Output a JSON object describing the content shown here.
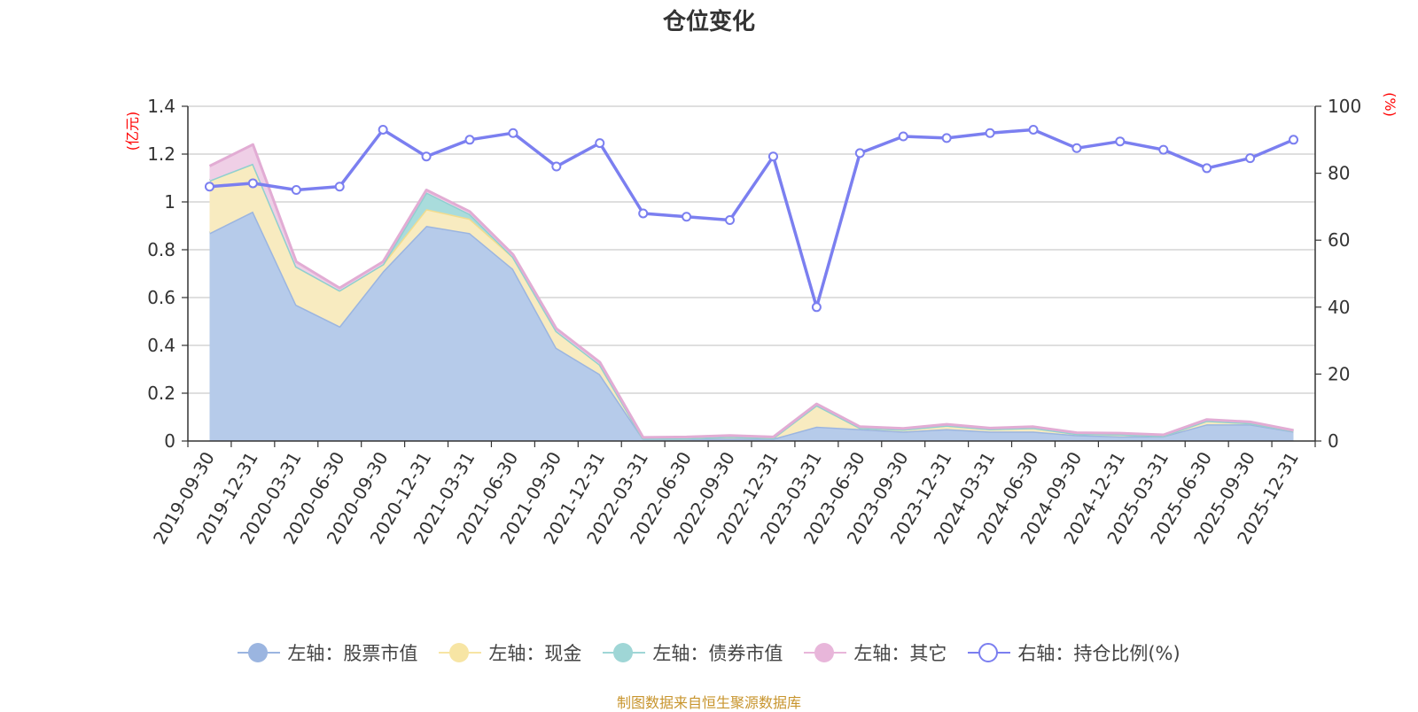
{
  "title": "仓位变化",
  "source_note": "制图数据来自恒生聚源数据库",
  "legend": [
    {
      "label": "左轴：股票市值",
      "color": "#9bb5e0",
      "hollow": false
    },
    {
      "label": "左轴：现金",
      "color": "#f7e5a4",
      "hollow": false
    },
    {
      "label": "左轴：债券市值",
      "color": "#9fd6d6",
      "hollow": false
    },
    {
      "label": "左轴：其它",
      "color": "#e8b6da",
      "hollow": false
    },
    {
      "label": "右轴：持仓比例(%)",
      "color": "#7b7ff0",
      "hollow": true
    }
  ],
  "chart_data": {
    "type": "area",
    "title": "仓位变化",
    "left_axis": {
      "unit": "(亿元)",
      "range": [
        0,
        1.4
      ],
      "ticks": [
        0,
        0.2,
        0.4,
        0.6,
        0.8,
        1,
        1.2,
        1.4
      ],
      "tick_labels": [
        "0",
        "0.2",
        "0.4",
        "0.6",
        "0.8",
        "1",
        "1.2",
        "1.4"
      ]
    },
    "right_axis": {
      "unit": "(%)",
      "range": [
        0,
        100
      ],
      "ticks": [
        0,
        20,
        40,
        60,
        80,
        100
      ],
      "tick_labels": [
        "0",
        "20",
        "40",
        "60",
        "80",
        "100"
      ]
    },
    "categories": [
      "2019-09-30",
      "2019-12-31",
      "2020-03-31",
      "2020-06-30",
      "2020-09-30",
      "2020-12-31",
      "2021-03-31",
      "2021-06-30",
      "2021-09-30",
      "2021-12-31",
      "2022-03-31",
      "2022-06-30",
      "2022-09-30",
      "2022-12-31",
      "2023-03-31",
      "2023-06-30",
      "2023-09-30",
      "2023-12-31",
      "2024-03-31",
      "2024-06-30",
      "2024-09-30",
      "2024-12-31",
      "2025-03-31",
      "2025-06-30",
      "2025-09-30",
      "2025-12-31"
    ],
    "series": [
      {
        "name": "左轴：股票市值",
        "axis": "left",
        "stacked": true,
        "color": "#9bb5e0",
        "fill": "#b6cbea",
        "values": [
          0.87,
          0.96,
          0.57,
          0.48,
          0.71,
          0.9,
          0.87,
          0.72,
          0.39,
          0.28,
          0.01,
          0.01,
          0.01,
          0.01,
          0.06,
          0.05,
          0.04,
          0.05,
          0.04,
          0.04,
          0.025,
          0.02,
          0.02,
          0.07,
          0.07,
          0.04
        ]
      },
      {
        "name": "左轴：现金",
        "axis": "left",
        "stacked": true,
        "color": "#f2dc8e",
        "fill": "#f8ebc0",
        "values": [
          0.22,
          0.2,
          0.16,
          0.15,
          0.03,
          0.07,
          0.06,
          0.05,
          0.07,
          0.04,
          0.001,
          0.002,
          0.008,
          0.003,
          0.09,
          0.005,
          0.008,
          0.015,
          0.01,
          0.015,
          0.005,
          0.008,
          0.002,
          0.015,
          0.005,
          0.003
        ]
      },
      {
        "name": "左轴：债券市值",
        "axis": "left",
        "stacked": true,
        "color": "#8fd0d0",
        "fill": "#a9dcdc",
        "values": [
          0,
          0,
          0,
          0,
          0,
          0.07,
          0.02,
          0,
          0,
          0,
          0,
          0,
          0,
          0,
          0,
          0,
          0,
          0,
          0,
          0,
          0,
          0,
          0,
          0,
          0,
          0
        ]
      },
      {
        "name": "左轴：其它",
        "axis": "left",
        "stacked": true,
        "color": "#e2acd4",
        "fill": "#efcfe6",
        "values": [
          0.06,
          0.08,
          0.02,
          0.01,
          0.01,
          0.01,
          0.01,
          0.01,
          0.01,
          0.01,
          0.004,
          0.005,
          0.005,
          0.004,
          0.005,
          0.005,
          0.005,
          0.005,
          0.004,
          0.005,
          0.005,
          0.005,
          0.004,
          0.005,
          0.005,
          0.002
        ]
      },
      {
        "name": "右轴：持仓比例(%)",
        "axis": "right",
        "type": "line",
        "color": "#7b7ff0",
        "values": [
          76,
          77,
          75,
          76,
          93,
          85,
          90,
          92,
          82,
          89,
          68,
          67,
          66,
          85,
          40,
          86,
          91,
          90.5,
          92,
          93,
          87.5,
          89.5,
          87,
          81.5,
          84.5,
          90
        ]
      }
    ]
  }
}
